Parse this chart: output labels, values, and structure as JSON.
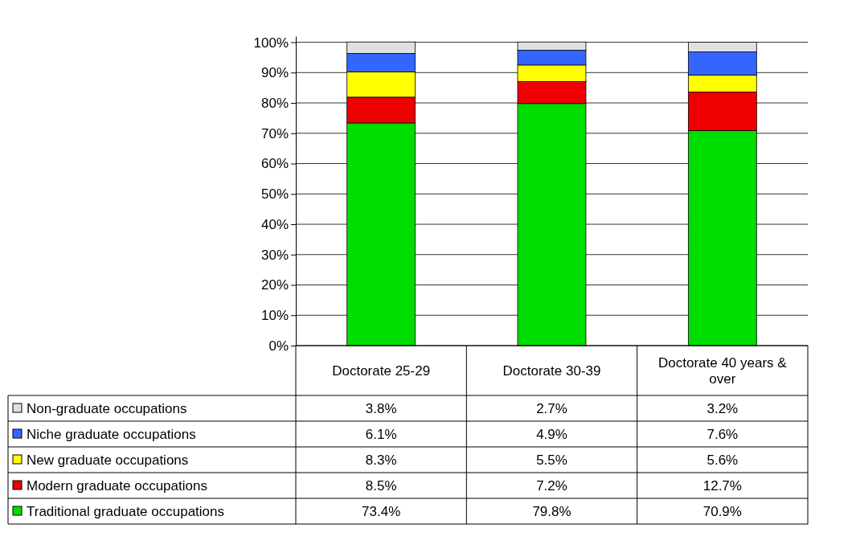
{
  "chart_data": {
    "type": "bar",
    "stacked": true,
    "categories": [
      "Doctorate 25-29",
      "Doctorate 30-39",
      "Doctorate 40 years & over"
    ],
    "series": [
      {
        "name": "Traditional graduate occupations",
        "color": "#00dd00",
        "values": [
          73.4,
          79.8,
          70.9
        ],
        "value_labels": [
          "73.4%",
          "79.8%",
          "70.9%"
        ]
      },
      {
        "name": "Modern graduate occupations",
        "color": "#ee0000",
        "values": [
          8.5,
          7.2,
          12.7
        ],
        "value_labels": [
          "8.5%",
          "7.2%",
          "12.7%"
        ]
      },
      {
        "name": "New graduate occupations",
        "color": "#ffff00",
        "values": [
          8.3,
          5.5,
          5.6
        ],
        "value_labels": [
          "8.3%",
          "5.5%",
          "5.6%"
        ]
      },
      {
        "name": "Niche graduate occupations",
        "color": "#3366ff",
        "values": [
          6.1,
          4.9,
          7.6
        ],
        "value_labels": [
          "6.1%",
          "4.9%",
          "7.6%"
        ]
      },
      {
        "name": "Non-graduate occupations",
        "color": "#e0e0e0",
        "values": [
          3.8,
          2.7,
          3.2
        ],
        "value_labels": [
          "3.8%",
          "2.7%",
          "3.2%"
        ]
      }
    ],
    "ylim": [
      0,
      102
    ],
    "yticks": [
      {
        "value": 0,
        "label": "0%"
      },
      {
        "value": 10,
        "label": "10%"
      },
      {
        "value": 20,
        "label": "20%"
      },
      {
        "value": 30,
        "label": "30%"
      },
      {
        "value": 40,
        "label": "40%"
      },
      {
        "value": 50,
        "label": "50%"
      },
      {
        "value": 60,
        "label": "60%"
      },
      {
        "value": 70,
        "label": "70%"
      },
      {
        "value": 80,
        "label": "80%"
      },
      {
        "value": 90,
        "label": "90%"
      },
      {
        "value": 100,
        "label": "100%"
      }
    ],
    "grid": "y",
    "legend": "bottom left"
  }
}
